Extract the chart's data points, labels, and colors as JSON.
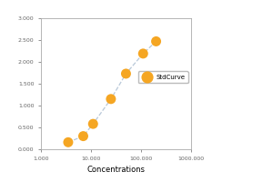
{
  "title": "",
  "xlabel": "Concentrations",
  "ylabel": "",
  "x_data": [
    3500,
    7000,
    11000,
    25000,
    50000,
    110000,
    200000
  ],
  "y_data": [
    0.16,
    0.3,
    0.58,
    1.15,
    1.73,
    2.19,
    2.47
  ],
  "xlim_log": [
    1000,
    1000000
  ],
  "ylim": [
    0.0,
    3.0
  ],
  "yticks": [
    0.0,
    0.5,
    1.0,
    1.5,
    2.0,
    2.5,
    3.0
  ],
  "ytick_labels": [
    "0.000",
    "0.500",
    "1.000",
    "1.500",
    "2.000",
    "2.500",
    "3.000"
  ],
  "xtick_positions": [
    1000,
    10000,
    100000,
    1000000
  ],
  "xtick_labels": [
    "1.000",
    "10.000",
    "100.000",
    "1000.000"
  ],
  "marker_color": "#F5A623",
  "line_color": "#B8C8D8",
  "line_style": "--",
  "legend_label": "StdCurve",
  "bg_color": "#FFFFFF",
  "plot_bg_color": "#FFFFFF",
  "marker_size": 5,
  "legend_edge_color": "#AAAAAA",
  "figsize": [
    3.0,
    2.0
  ],
  "dpi": 100
}
